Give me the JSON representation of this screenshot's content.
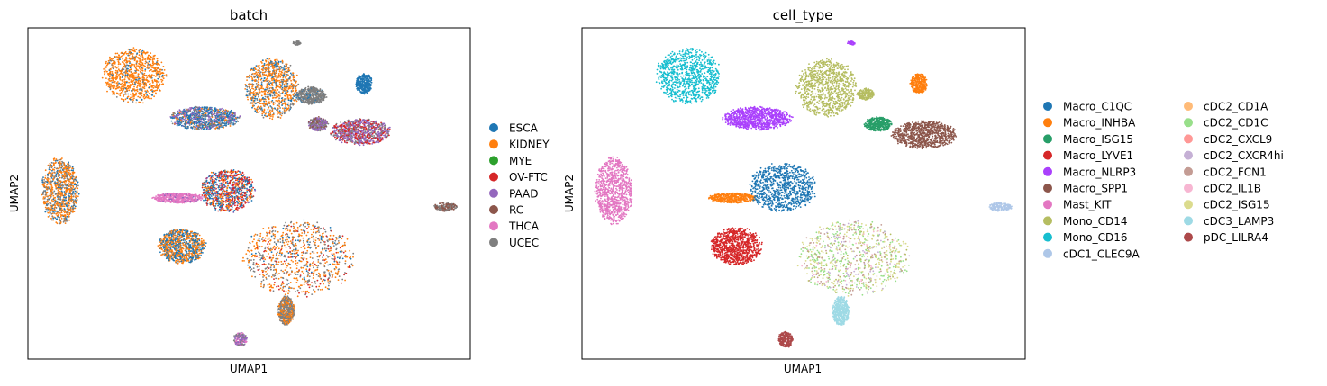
{
  "chart_data": [
    {
      "type": "scatter",
      "title": "batch",
      "xlabel": "UMAP1",
      "ylabel": "UMAP2",
      "grid": false,
      "ticks": false,
      "legend_placement": "right",
      "legend": [
        {
          "label": "ESCA",
          "color": "#1f77b4"
        },
        {
          "label": "KIDNEY",
          "color": "#ff7f0e"
        },
        {
          "label": "MYE",
          "color": "#2ca02c"
        },
        {
          "label": "OV-FTC",
          "color": "#d62728"
        },
        {
          "label": "PAAD",
          "color": "#9467bd"
        },
        {
          "label": "RC",
          "color": "#8c564b"
        },
        {
          "label": "THCA",
          "color": "#e377c2"
        },
        {
          "label": "UCEC",
          "color": "#7f7f7f"
        }
      ],
      "xlim": [
        -10,
        15
      ],
      "ylim": [
        -10,
        12
      ],
      "clusters": [
        {
          "x": -4.0,
          "y": 8.8,
          "rx": 1.9,
          "ry": 1.9,
          "mix": {
            "KIDNEY": 0.85,
            "ESCA": 0.08,
            "UCEC": 0.07
          }
        },
        {
          "x": 3.8,
          "y": 8.0,
          "rx": 1.6,
          "ry": 2.1,
          "mix": {
            "KIDNEY": 0.6,
            "ESCA": 0.2,
            "UCEC": 0.2
          }
        },
        {
          "x": 6.0,
          "y": 7.5,
          "rx": 0.9,
          "ry": 0.6,
          "mix": {
            "UCEC": 0.9,
            "ESCA": 0.1
          }
        },
        {
          "x": 9.0,
          "y": 8.3,
          "rx": 0.5,
          "ry": 0.7,
          "mix": {
            "ESCA": 1.0
          }
        },
        {
          "x": 5.2,
          "y": 11.0,
          "rx": 0.25,
          "ry": 0.15,
          "mix": {
            "UCEC": 1.0
          }
        },
        {
          "x": 0.0,
          "y": 6.0,
          "rx": 2.1,
          "ry": 0.8,
          "mix": {
            "ESCA": 0.45,
            "PAAD": 0.25,
            "UCEC": 0.2,
            "KIDNEY": 0.1
          }
        },
        {
          "x": 6.4,
          "y": 5.6,
          "rx": 0.6,
          "ry": 0.5,
          "mix": {
            "PAAD": 0.4,
            "RC": 0.3,
            "UCEC": 0.3
          }
        },
        {
          "x": 8.8,
          "y": 5.1,
          "rx": 1.8,
          "ry": 0.9,
          "mix": {
            "PAAD": 0.45,
            "OV-FTC": 0.3,
            "UCEC": 0.25
          }
        },
        {
          "x": -8.2,
          "y": 1.2,
          "rx": 1.1,
          "ry": 2.3,
          "mix": {
            "KIDNEY": 0.55,
            "ESCA": 0.2,
            "UCEC": 0.25
          }
        },
        {
          "x": -1.5,
          "y": 0.7,
          "rx": 1.5,
          "ry": 0.35,
          "mix": {
            "THCA": 0.9,
            "PAAD": 0.1
          }
        },
        {
          "x": 1.3,
          "y": 1.2,
          "rx": 1.6,
          "ry": 1.5,
          "mix": {
            "ESCA": 0.35,
            "OV-FTC": 0.35,
            "KIDNEY": 0.2,
            "PAAD": 0.1
          }
        },
        {
          "x": -1.3,
          "y": -2.5,
          "rx": 1.4,
          "ry": 1.2,
          "mix": {
            "KIDNEY": 0.5,
            "ESCA": 0.4,
            "UCEC": 0.1
          }
        },
        {
          "x": 5.3,
          "y": -3.3,
          "rx": 3.3,
          "ry": 2.6,
          "mix": {
            "KIDNEY": 0.5,
            "UCEC": 0.3,
            "ESCA": 0.1,
            "OV-FTC": 0.1
          }
        },
        {
          "x": 4.6,
          "y": -6.8,
          "rx": 0.5,
          "ry": 1.0,
          "mix": {
            "UCEC": 0.6,
            "KIDNEY": 0.4
          }
        },
        {
          "x": 13.6,
          "y": 0.1,
          "rx": 0.7,
          "ry": 0.3,
          "mix": {
            "RC": 0.6,
            "UCEC": 0.4
          }
        },
        {
          "x": 2.0,
          "y": -8.7,
          "rx": 0.4,
          "ry": 0.5,
          "mix": {
            "PAAD": 0.5,
            "THCA": 0.3,
            "UCEC": 0.2
          }
        }
      ]
    },
    {
      "type": "scatter",
      "title": "cell_type",
      "xlabel": "UMAP1",
      "ylabel": "UMAP2",
      "grid": false,
      "ticks": false,
      "legend_placement": "right",
      "legend": [
        {
          "label": "Macro_C1QC",
          "color": "#1f77b4"
        },
        {
          "label": "Macro_INHBA",
          "color": "#ff7f0e"
        },
        {
          "label": "Macro_ISG15",
          "color": "#279e68"
        },
        {
          "label": "Macro_LYVE1",
          "color": "#d62728"
        },
        {
          "label": "Macro_NLRP3",
          "color": "#aa40fc"
        },
        {
          "label": "Macro_SPP1",
          "color": "#8c564b"
        },
        {
          "label": "Mast_KIT",
          "color": "#e377c2"
        },
        {
          "label": "Mono_CD14",
          "color": "#b5bd61"
        },
        {
          "label": "Mono_CD16",
          "color": "#17becf"
        },
        {
          "label": "cDC1_CLEC9A",
          "color": "#aec7e8"
        },
        {
          "label": "cDC2_CD1A",
          "color": "#ffbb78"
        },
        {
          "label": "cDC2_CD1C",
          "color": "#98df8a"
        },
        {
          "label": "cDC2_CXCL9",
          "color": "#ff9896"
        },
        {
          "label": "cDC2_CXCR4hi",
          "color": "#c5b0d5"
        },
        {
          "label": "cDC2_FCN1",
          "color": "#c49c94"
        },
        {
          "label": "cDC2_IL1B",
          "color": "#f7b6d2"
        },
        {
          "label": "cDC2_ISG15",
          "color": "#dbdb8d"
        },
        {
          "label": "cDC3_LAMP3",
          "color": "#9edae5"
        },
        {
          "label": "pDC_LILRA4",
          "color": "#ad494a"
        }
      ],
      "xlim": [
        -10,
        15
      ],
      "ylim": [
        -10,
        12
      ],
      "clusters": [
        {
          "x": -4.0,
          "y": 8.8,
          "rx": 1.9,
          "ry": 1.9,
          "mix": {
            "Mono_CD16": 1.0
          }
        },
        {
          "x": 3.8,
          "y": 8.0,
          "rx": 1.8,
          "ry": 2.0,
          "mix": {
            "Mono_CD14": 1.0
          }
        },
        {
          "x": 6.0,
          "y": 7.6,
          "rx": 0.5,
          "ry": 0.4,
          "mix": {
            "Mono_CD14": 1.0
          }
        },
        {
          "x": 9.0,
          "y": 8.3,
          "rx": 0.5,
          "ry": 0.7,
          "mix": {
            "Macro_INHBA": 1.0
          }
        },
        {
          "x": 5.2,
          "y": 11.0,
          "rx": 0.25,
          "ry": 0.15,
          "mix": {
            "Macro_NLRP3": 1.0
          }
        },
        {
          "x": -0.1,
          "y": 6.0,
          "rx": 2.0,
          "ry": 0.8,
          "mix": {
            "Macro_NLRP3": 1.0
          }
        },
        {
          "x": 6.7,
          "y": 5.6,
          "rx": 0.8,
          "ry": 0.5,
          "mix": {
            "Macro_ISG15": 1.0
          }
        },
        {
          "x": 9.3,
          "y": 4.9,
          "rx": 1.9,
          "ry": 0.95,
          "mix": {
            "Macro_SPP1": 1.0
          }
        },
        {
          "x": -8.2,
          "y": 1.2,
          "rx": 1.1,
          "ry": 2.3,
          "mix": {
            "Mast_KIT": 1.0
          }
        },
        {
          "x": -1.5,
          "y": 0.7,
          "rx": 1.4,
          "ry": 0.35,
          "mix": {
            "Macro_INHBA": 1.0
          }
        },
        {
          "x": 1.3,
          "y": 1.4,
          "rx": 2.0,
          "ry": 1.7,
          "mix": {
            "Macro_C1QC": 1.0
          }
        },
        {
          "x": -1.3,
          "y": -2.5,
          "rx": 1.5,
          "ry": 1.3,
          "mix": {
            "Macro_LYVE1": 1.0
          }
        },
        {
          "x": 5.3,
          "y": -3.3,
          "rx": 3.3,
          "ry": 2.6,
          "mix": {
            "cDC2_CD1C": 0.3,
            "cDC2_ISG15": 0.3,
            "cDC2_FCN1": 0.15,
            "cDC2_CXCR4hi": 0.1,
            "Mono_CD14": 0.1,
            "cDC2_IL1B": 0.05
          }
        },
        {
          "x": 4.6,
          "y": -6.8,
          "rx": 0.5,
          "ry": 1.0,
          "mix": {
            "cDC3_LAMP3": 1.0
          }
        },
        {
          "x": 13.6,
          "y": 0.1,
          "rx": 0.7,
          "ry": 0.3,
          "mix": {
            "cDC1_CLEC9A": 1.0
          }
        },
        {
          "x": 1.5,
          "y": -8.7,
          "rx": 0.45,
          "ry": 0.55,
          "mix": {
            "pDC_LILRA4": 1.0
          }
        }
      ]
    }
  ]
}
